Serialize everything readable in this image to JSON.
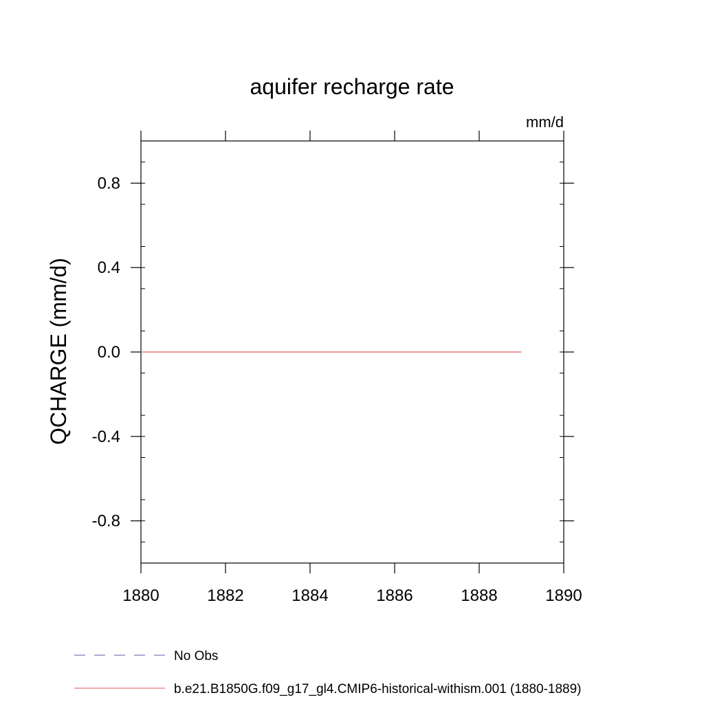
{
  "chart_data": {
    "type": "line",
    "title": "aquifer recharge rate",
    "units": "mm/d",
    "ylabel": "QCHARGE  (mm/d)",
    "xlabel": "",
    "xlim": [
      1880,
      1890
    ],
    "ylim": [
      -1.0,
      1.0
    ],
    "x_ticks": [
      1880,
      1882,
      1884,
      1886,
      1888,
      1890
    ],
    "x_tick_labels": [
      "1880",
      "1882",
      "1884",
      "1886",
      "1888",
      "1890"
    ],
    "y_ticks": [
      0.8,
      0.4,
      0.0,
      -0.4,
      -0.8
    ],
    "y_tick_labels": [
      "0.8",
      "0.4",
      "0.0",
      "-0.4",
      "-0.8"
    ],
    "grid": false,
    "legend_position": "bottom",
    "series": [
      {
        "name": "No Obs",
        "color": "#7b7bb8",
        "style": "dashed",
        "x": [],
        "y": []
      },
      {
        "name": "b.e21.B1850G.f09_g17_gl4.CMIP6-historical-withism.001 (1880-1889)",
        "color": "#e8757a",
        "style": "solid",
        "x": [
          1880,
          1881,
          1882,
          1883,
          1884,
          1885,
          1886,
          1887,
          1888,
          1889
        ],
        "y": [
          0,
          0,
          0,
          0,
          0,
          0,
          0,
          0,
          0,
          0
        ]
      }
    ]
  }
}
